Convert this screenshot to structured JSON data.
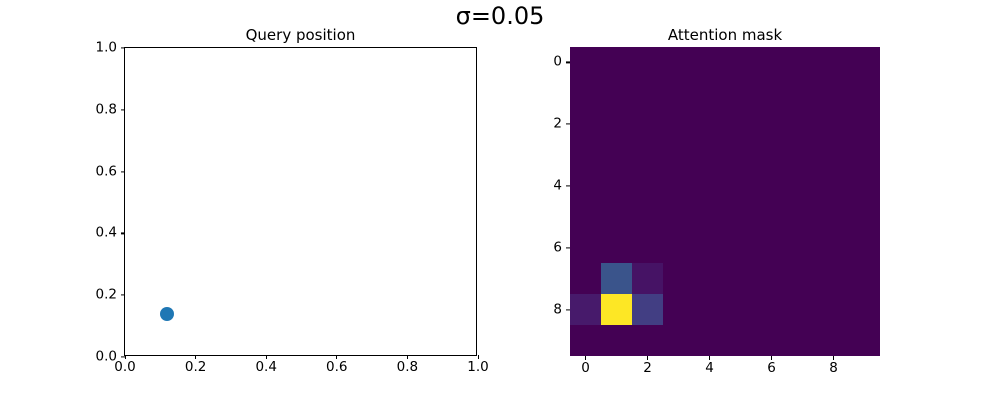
{
  "figure": {
    "suptitle": "σ=0.05",
    "background_color": "#ffffff"
  },
  "chart_data": [
    {
      "type": "scatter",
      "title": "Query position",
      "x": [
        0.12
      ],
      "y": [
        0.14
      ],
      "xlim": [
        0.0,
        1.0
      ],
      "ylim": [
        0.0,
        1.0
      ],
      "xticks": [
        0.0,
        0.2,
        0.4,
        0.6,
        0.8,
        1.0
      ],
      "yticks": [
        0.0,
        0.2,
        0.4,
        0.6,
        0.8,
        1.0
      ],
      "xtick_labels": [
        "0.0",
        "0.2",
        "0.4",
        "0.6",
        "0.8",
        "1.0"
      ],
      "ytick_labels": [
        "0.0",
        "0.2",
        "0.4",
        "0.6",
        "0.8",
        "1.0"
      ],
      "marker_color": "#1f77b4",
      "marker_size_px": 14,
      "grid": false,
      "legend": false
    },
    {
      "type": "heatmap",
      "title": "Attention mask",
      "colormap": "viridis",
      "colormap_min_color": "#440154",
      "colormap_max_color": "#fde725",
      "vmin": 0.0,
      "vmax": 1.0,
      "shape": [
        10,
        10
      ],
      "xticks": [
        0,
        2,
        4,
        6,
        8
      ],
      "yticks": [
        0,
        2,
        4,
        6,
        8
      ],
      "xtick_labels": [
        "0",
        "2",
        "4",
        "6",
        "8"
      ],
      "ytick_labels": [
        "0",
        "2",
        "4",
        "6",
        "8"
      ],
      "grid": false,
      "legend": false,
      "values": [
        [
          0,
          0,
          0,
          0,
          0,
          0,
          0,
          0,
          0,
          0
        ],
        [
          0,
          0,
          0,
          0,
          0,
          0,
          0,
          0,
          0,
          0
        ],
        [
          0,
          0,
          0,
          0,
          0,
          0,
          0,
          0,
          0,
          0
        ],
        [
          0,
          0,
          0,
          0,
          0,
          0,
          0,
          0,
          0,
          0
        ],
        [
          0,
          0,
          0,
          0,
          0,
          0,
          0,
          0,
          0,
          0
        ],
        [
          0,
          0,
          0,
          0,
          0,
          0,
          0,
          0,
          0,
          0
        ],
        [
          0,
          0,
          0,
          0,
          0,
          0,
          0,
          0,
          0,
          0
        ],
        [
          0,
          0.26,
          0.05,
          0,
          0,
          0,
          0,
          0,
          0,
          0
        ],
        [
          0.07,
          1.0,
          0.18,
          0,
          0,
          0,
          0,
          0,
          0,
          0
        ],
        [
          0,
          0,
          0,
          0,
          0,
          0,
          0,
          0,
          0,
          0
        ]
      ]
    }
  ]
}
